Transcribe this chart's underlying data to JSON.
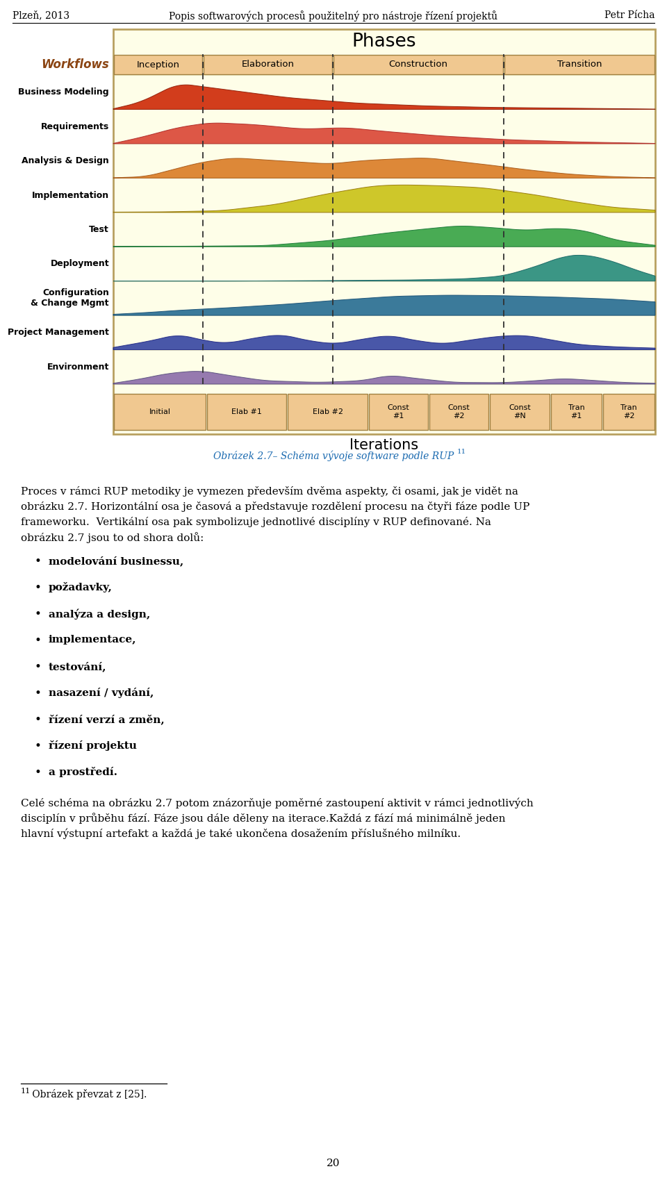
{
  "header_left": "Plzeň, 2013",
  "header_center": "Popis softwarových procesů použitelný pro nástroje řízení projektů",
  "header_right": "Petr Pícha",
  "figure_caption": "Obrázek 2.7– Schéma vývoje software podle RUP",
  "figure_caption_superscript": "11",
  "para1_lines": [
    "Proces v rámci RUP metodiky je vymezen především dvěma aspekty, či osami, jak je vidět na",
    "obrázku 2.7. Horizontální osa je časová a představuje rozdělení procesu na čtyři fáze podle UP",
    "frameworku.  Vertikální osa pak symbolizuje jednotlivé disciplíny v RUP definované. Na",
    "obrázku 2.7 jsou to od shora dolů:"
  ],
  "bullet_items": [
    "modelování businessu,",
    "požadavky,",
    "analýza a design,",
    "implementace,",
    "testování,",
    "nasazení / vydání,",
    "řízení verzí a změn,",
    "řízení projektu",
    "a prostředí."
  ],
  "closing_lines": [
    "Celé schéma na obrázku 2.7 potom znázorňuje poměrné zastoupení aktivit v rámci jednotlivých",
    "disciplín v průběhu fází. Fáze jsou dále děleny na iterace.Každá z fází má minimálně jeden",
    "hlavní výstupní artefakt a každá je také ukončena dosažením příslušného milníku."
  ],
  "footnote_number": "11",
  "footnote_text": " Obrázek převzat z [25].",
  "page_number": "20",
  "bg_color": "#ffffff",
  "text_color": "#000000",
  "caption_color": "#1a6ab0",
  "rup_bg": "#fefee8",
  "rup_border": "#b8a060",
  "phase_box_bg": "#f0c890",
  "phase_box_border": "#a08040",
  "dashed_line_color": "#303030",
  "iter_box_bg": "#f0c890",
  "iter_box_border": "#a08040",
  "workflows_color": "#8b4513",
  "workflow_labels": [
    "Business Modeling",
    "Requirements",
    "Analysis & Design",
    "Implementation",
    "Test",
    "Deployment",
    "Configuration\n& Change Mgmt",
    "Project Management",
    "Environment"
  ],
  "phase_labels": [
    "Inception",
    "Elaboration",
    "Construction",
    "Transition"
  ],
  "iteration_labels": [
    "Initial",
    "Elab #1",
    "Elab #2",
    "Const\n#1",
    "Const\n#2",
    "Const\n#N",
    "Tran\n#1",
    "Tran\n#2"
  ],
  "wave_colors": [
    "#cc2200",
    "#d94030",
    "#d97820",
    "#c8c010",
    "#30a040",
    "#208878",
    "#206890",
    "#3040a0",
    "#8868a8"
  ],
  "wave_outline_colors": [
    "#881500",
    "#a82020",
    "#a05010",
    "#907000",
    "#107030",
    "#106060",
    "#104870",
    "#182080",
    "#504878"
  ]
}
